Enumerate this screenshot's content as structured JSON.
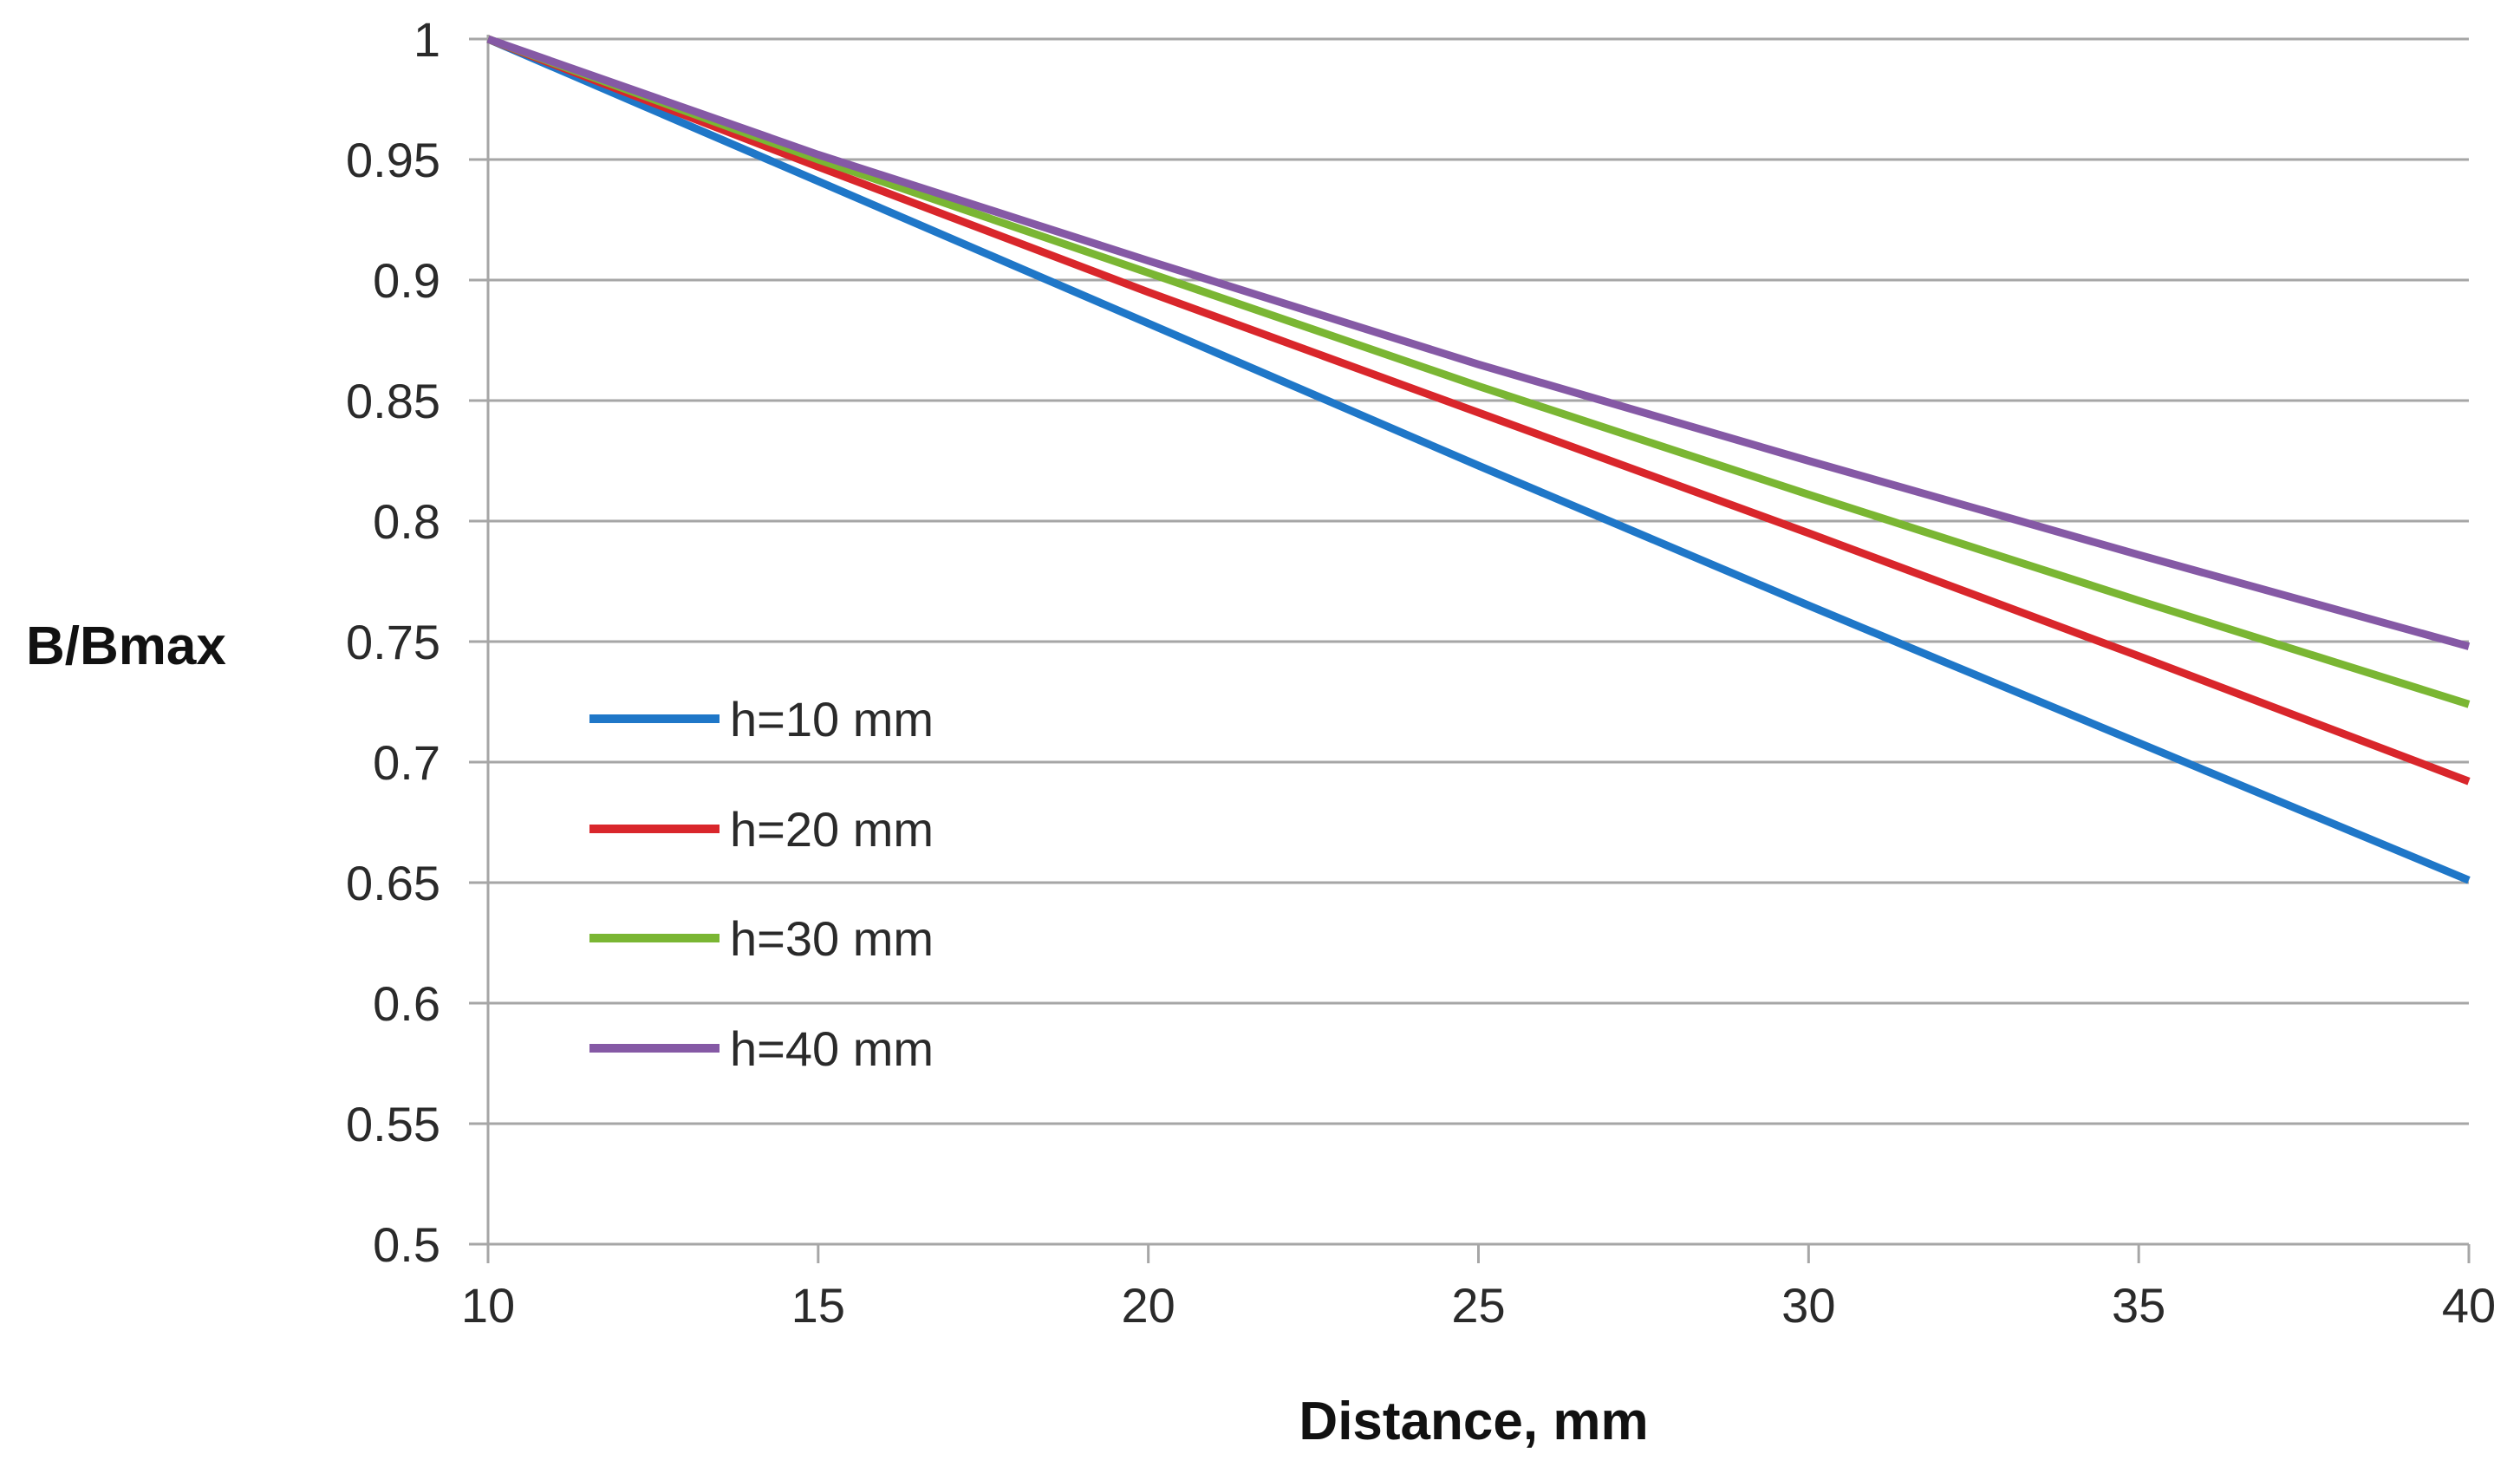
{
  "chart_data": {
    "type": "line",
    "title": "",
    "xlabel": "Distance, mm",
    "ylabel": "B/Bmax",
    "xlim": [
      10,
      40
    ],
    "ylim": [
      0.5,
      1
    ],
    "x_ticks": [
      10,
      15,
      20,
      25,
      30,
      35,
      40
    ],
    "y_ticks": [
      0.5,
      0.55,
      0.6,
      0.65,
      0.7,
      0.75,
      0.8,
      0.85,
      0.9,
      0.95,
      1
    ],
    "x_tick_labels": [
      "10",
      "15",
      "20",
      "25",
      "30",
      "35",
      "40"
    ],
    "y_tick_labels": [
      "0.5",
      "0.55",
      "0.6",
      "0.65",
      "0.7",
      "0.75",
      "0.8",
      "0.85",
      "0.9",
      "0.95",
      "1"
    ],
    "grid": "horizontal",
    "legend_position": "lower-left inside plot",
    "x": [
      10,
      15,
      20,
      25,
      30,
      35,
      40
    ],
    "series": [
      {
        "name": "h=10 mm",
        "color": "#1f77c8",
        "values": [
          1.0,
          0.941,
          0.882,
          0.823,
          0.765,
          0.708,
          0.651
        ]
      },
      {
        "name": "h=20 mm",
        "color": "#d9262b",
        "values": [
          1.0,
          0.947,
          0.895,
          0.845,
          0.795,
          0.744,
          0.692
        ]
      },
      {
        "name": "h=30 mm",
        "color": "#7ab633",
        "values": [
          1.0,
          0.95,
          0.903,
          0.856,
          0.811,
          0.767,
          0.724
        ]
      },
      {
        "name": "h=40 mm",
        "color": "#8559a5",
        "values": [
          1.0,
          0.952,
          0.908,
          0.865,
          0.825,
          0.786,
          0.748
        ]
      }
    ]
  }
}
